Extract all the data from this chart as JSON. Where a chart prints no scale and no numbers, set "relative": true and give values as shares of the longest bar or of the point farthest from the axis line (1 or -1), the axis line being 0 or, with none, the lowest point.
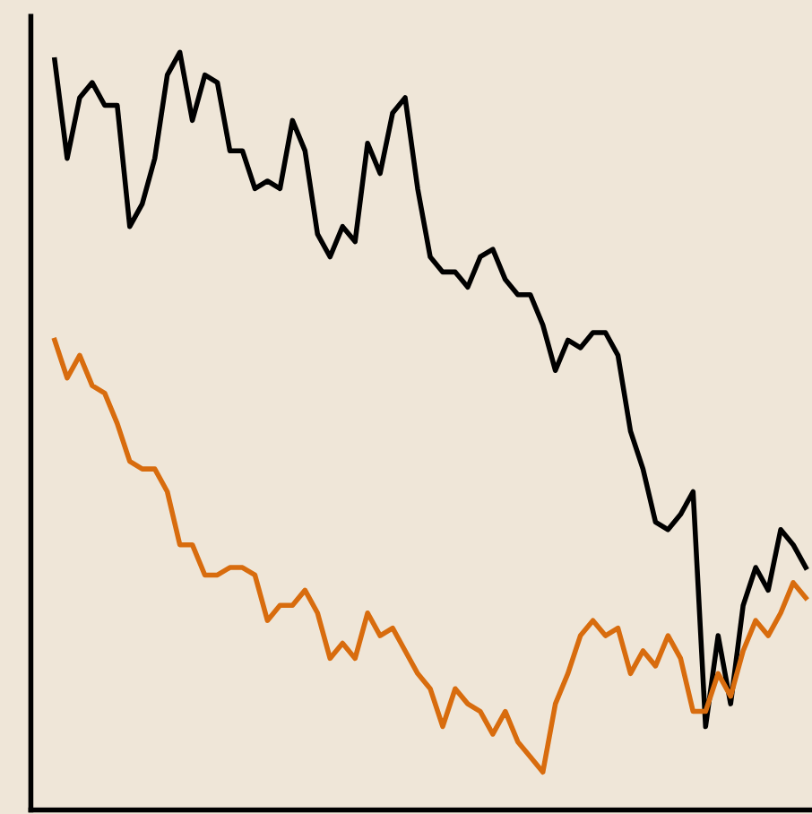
{
  "chart_data": {
    "type": "line",
    "relative": true,
    "grid": false,
    "marker": "none",
    "line_style": "solid",
    "categories": [
      null,
      null,
      null,
      null,
      null,
      null,
      null,
      null,
      null,
      null,
      null,
      null,
      null,
      null,
      null,
      null,
      null,
      null,
      null,
      null,
      null,
      null,
      null,
      null,
      null,
      null,
      null,
      null,
      null,
      null,
      null,
      null,
      null,
      null,
      null,
      null,
      null,
      null,
      null,
      null,
      null,
      null,
      null,
      null,
      null,
      null,
      null,
      null,
      null,
      null,
      null,
      null,
      null,
      null,
      null,
      null,
      null,
      null,
      null,
      null,
      null
    ],
    "series": [
      {
        "color": "#000000",
        "values": [
          0.99,
          0.86,
          0.94,
          0.96,
          0.93,
          0.93,
          0.77,
          0.8,
          0.86,
          0.97,
          1.0,
          0.91,
          0.97,
          0.96,
          0.87,
          0.87,
          0.82,
          0.83,
          0.82,
          0.91,
          0.87,
          0.76,
          0.73,
          0.77,
          0.75,
          0.88,
          0.84,
          0.92,
          0.94,
          0.82,
          0.73,
          0.71,
          0.71,
          0.69,
          0.73,
          0.74,
          0.7,
          0.68,
          0.68,
          0.64,
          0.58,
          0.62,
          0.61,
          0.63,
          0.63,
          0.6,
          0.5,
          0.45,
          0.38,
          0.37,
          0.39,
          0.42,
          0.11,
          0.23,
          0.14,
          0.27,
          0.32,
          0.29,
          0.37,
          0.35,
          0.32
        ]
      },
      {
        "color": "#d86c0e",
        "values": [
          0.62,
          0.57,
          0.6,
          0.56,
          0.55,
          0.51,
          0.46,
          0.45,
          0.45,
          0.42,
          0.35,
          0.35,
          0.31,
          0.31,
          0.32,
          0.32,
          0.31,
          0.25,
          0.27,
          0.27,
          0.29,
          0.26,
          0.2,
          0.22,
          0.2,
          0.26,
          0.23,
          0.24,
          0.21,
          0.18,
          0.16,
          0.11,
          0.16,
          0.14,
          0.13,
          0.1,
          0.13,
          0.09,
          0.07,
          0.05,
          0.14,
          0.18,
          0.23,
          0.25,
          0.23,
          0.24,
          0.18,
          0.21,
          0.19,
          0.23,
          0.2,
          0.13,
          0.13,
          0.18,
          0.15,
          0.21,
          0.25,
          0.23,
          0.26,
          0.3,
          0.28
        ]
      }
    ]
  }
}
